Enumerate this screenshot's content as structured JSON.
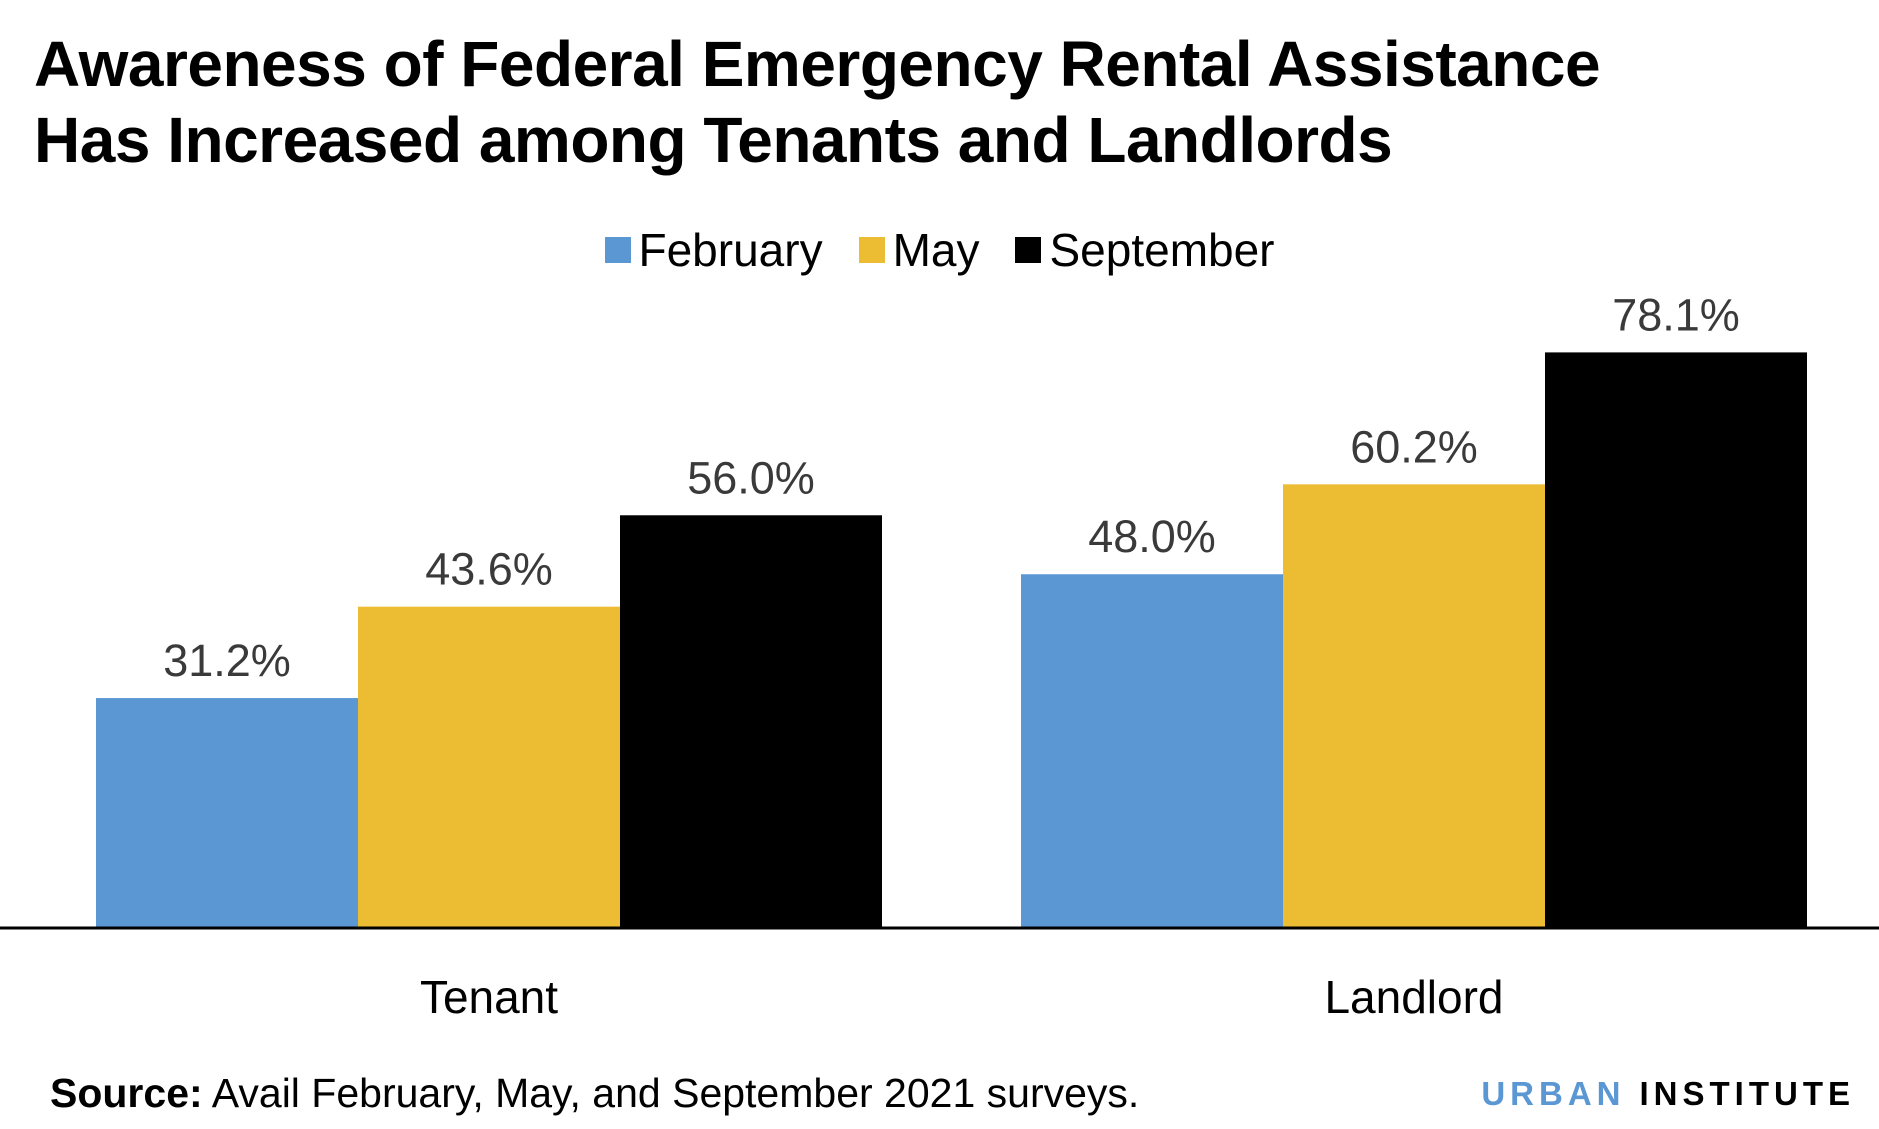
{
  "header": {
    "title_line1": "Awareness of Federal Emergency Rental Assistance",
    "title_line2": "Has Increased among Tenants and Landlords"
  },
  "legend": [
    {
      "label": "February",
      "color": "#5b97d3"
    },
    {
      "label": "May",
      "color": "#ecbc33"
    },
    {
      "label": "September",
      "color": "#000000"
    }
  ],
  "chart_data": {
    "type": "bar",
    "title": "Awareness of Federal Emergency Rental Assistance Has Increased among Tenants and Landlords",
    "categories": [
      "Tenant",
      "Landlord"
    ],
    "series": [
      {
        "name": "February",
        "values": [
          31.2,
          48.0
        ],
        "labels": [
          "31.2%",
          "48.0%"
        ],
        "color": "#5b97d3"
      },
      {
        "name": "May",
        "values": [
          43.6,
          60.2
        ],
        "labels": [
          "43.6%",
          "60.2%"
        ],
        "color": "#ecbc33"
      },
      {
        "name": "September",
        "values": [
          56.0,
          78.1
        ],
        "labels": [
          "56.0%",
          "78.1%"
        ],
        "color": "#000000"
      }
    ],
    "ylim": [
      0,
      100
    ],
    "grid": false,
    "legend_position": "top-center",
    "xlabel": "",
    "ylabel": ""
  },
  "footer": {
    "source_label": "Source:",
    "source_text": " Avail February, May, and September 2021 surveys.",
    "brand_part1": "URBAN",
    "brand_part2": "INSTITUTE",
    "brand_color1": "#5b97d3",
    "brand_color2": "#000000"
  }
}
